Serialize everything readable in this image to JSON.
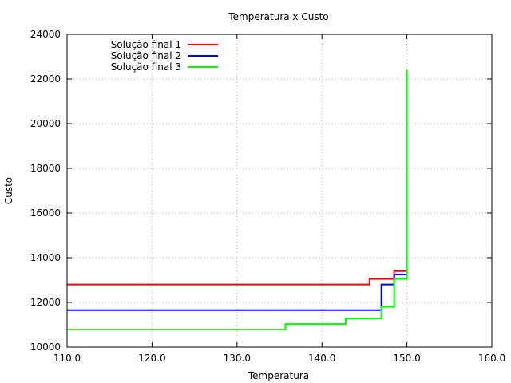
{
  "chart_data": {
    "type": "line",
    "title": "Temperatura x Custo",
    "xlabel": "Temperatura",
    "ylabel": "Custo",
    "xlim": [
      110,
      160
    ],
    "ylim": [
      10000,
      24000
    ],
    "xticks": [
      110,
      120,
      130,
      140,
      150,
      160
    ],
    "xtick_labels": [
      "110.0",
      "120.0",
      "130.0",
      "140.0",
      "150.0",
      "160.0"
    ],
    "yticks": [
      10000,
      12000,
      14000,
      16000,
      18000,
      20000,
      22000,
      24000
    ],
    "ytick_labels": [
      "10000",
      "12000",
      "14000",
      "16000",
      "18000",
      "20000",
      "22000",
      "24000"
    ],
    "grid": true,
    "legend_position": "top-left",
    "step": true,
    "series": [
      {
        "name": "Solução final 1",
        "color": "#ff0000",
        "x": [
          110.0,
          145.6,
          148.5,
          150.0,
          150.0
        ],
        "y": [
          12800,
          13050,
          13400,
          13400,
          13400
        ]
      },
      {
        "name": "Solução final 2",
        "color": "#0000ff",
        "x": [
          110.0,
          147.0,
          148.5,
          150.0,
          150.0
        ],
        "y": [
          11650,
          12800,
          13250,
          13250,
          13250
        ]
      },
      {
        "name": "Solução final 3",
        "color": "#00ff00",
        "x": [
          110.0,
          135.7,
          142.8,
          147.0,
          148.5,
          150.0
        ],
        "y": [
          10780,
          11030,
          11280,
          11800,
          13050,
          22400
        ]
      }
    ]
  }
}
